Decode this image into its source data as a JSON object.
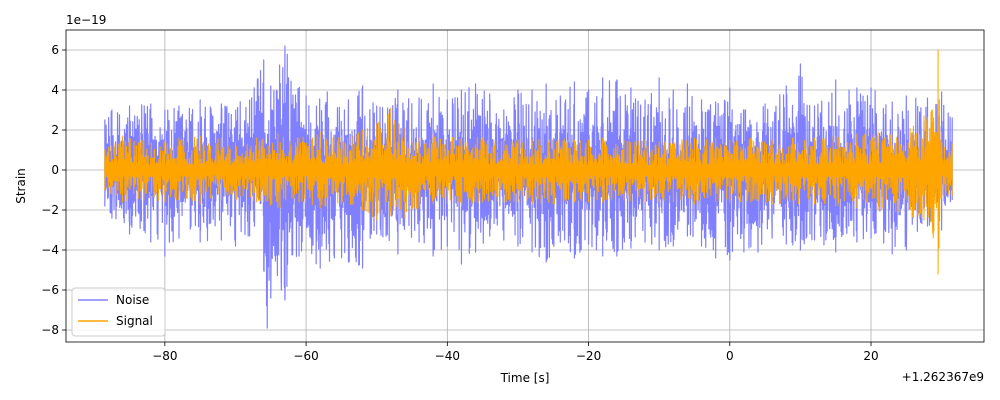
{
  "chart_data": {
    "type": "line",
    "title": "",
    "xlabel": "Time [s]",
    "ylabel": "Strain",
    "x_offset_label": "+1.262367e9",
    "y_scale_label": "1e−19",
    "xlim": [
      -94,
      36
    ],
    "ylim": [
      -8.6,
      7
    ],
    "x_ticks": [
      -80,
      -60,
      -40,
      -20,
      0,
      20
    ],
    "x_tick_labels": [
      "−80",
      "−60",
      "−40",
      "−20",
      "0",
      "20"
    ],
    "y_ticks": [
      -8,
      -6,
      -4,
      -2,
      0,
      2,
      4,
      6
    ],
    "y_tick_labels": [
      "−8",
      "−6",
      "−4",
      "−2",
      "0",
      "2",
      "4",
      "6"
    ],
    "grid": true,
    "legend_position": "lower-left",
    "series": [
      {
        "name": "Noise",
        "color": "#8080ff",
        "x_range": [
          -88.5,
          31.5
        ],
        "envelope_upper": [
          [
            -88.5,
            2.5
          ],
          [
            -87.5,
            3.0
          ],
          [
            -85,
            3.2
          ],
          [
            -82,
            3.3
          ],
          [
            -80,
            3.0
          ],
          [
            -78,
            3.2
          ],
          [
            -75,
            3.5
          ],
          [
            -72,
            3.3
          ],
          [
            -68,
            3.5
          ],
          [
            -66,
            5.5
          ],
          [
            -65,
            4.2
          ],
          [
            -63,
            6.2
          ],
          [
            -60,
            3.7
          ],
          [
            -57,
            3.9
          ],
          [
            -54,
            3.5
          ],
          [
            -52,
            4.2
          ],
          [
            -50,
            3.2
          ],
          [
            -47,
            4.0
          ],
          [
            -44,
            3.6
          ],
          [
            -42,
            4.3
          ],
          [
            -40,
            3.5
          ],
          [
            -38,
            4.0
          ],
          [
            -36,
            4.3
          ],
          [
            -34,
            3.8
          ],
          [
            -32,
            3.0
          ],
          [
            -30,
            4.0
          ],
          [
            -28,
            4.0
          ],
          [
            -26,
            4.3
          ],
          [
            -24,
            3.7
          ],
          [
            -22,
            4.4
          ],
          [
            -20,
            4.0
          ],
          [
            -18,
            4.6
          ],
          [
            -16,
            4.5
          ],
          [
            -14,
            4.1
          ],
          [
            -12,
            3.5
          ],
          [
            -10,
            4.6
          ],
          [
            -8,
            4.0
          ],
          [
            -6,
            4.3
          ],
          [
            -4,
            3.5
          ],
          [
            -2,
            3.4
          ],
          [
            0,
            4.1
          ],
          [
            2,
            3.0
          ],
          [
            5,
            3.3
          ],
          [
            8,
            4.2
          ],
          [
            10,
            5.3
          ],
          [
            12,
            3.2
          ],
          [
            15,
            4.5
          ],
          [
            18,
            4.1
          ],
          [
            20,
            4.1
          ],
          [
            23,
            3.4
          ],
          [
            25,
            3.7
          ],
          [
            28,
            3.6
          ],
          [
            30,
            3.9
          ],
          [
            31.5,
            2.6
          ]
        ],
        "envelope_lower": [
          [
            -88.5,
            -1.8
          ],
          [
            -87.5,
            -2.4
          ],
          [
            -85,
            -3.2
          ],
          [
            -82,
            -3.6
          ],
          [
            -80,
            -4.3
          ],
          [
            -78,
            -3.4
          ],
          [
            -75,
            -3.6
          ],
          [
            -72,
            -3.5
          ],
          [
            -70,
            -3.8
          ],
          [
            -68,
            -3.3
          ],
          [
            -66,
            -5.0
          ],
          [
            -65.5,
            -7.9
          ],
          [
            -65,
            -6.4
          ],
          [
            -63.5,
            -6.0
          ],
          [
            -63,
            -6.5
          ],
          [
            -61,
            -4.3
          ],
          [
            -58,
            -4.9
          ],
          [
            -56,
            -4.4
          ],
          [
            -54,
            -4.6
          ],
          [
            -52,
            -4.9
          ],
          [
            -50,
            -3.2
          ],
          [
            -47,
            -4.2
          ],
          [
            -44,
            -3.6
          ],
          [
            -42,
            -4.3
          ],
          [
            -40,
            -3.8
          ],
          [
            -38,
            -4.7
          ],
          [
            -36,
            -4.1
          ],
          [
            -34,
            -3.3
          ],
          [
            -32,
            -3.5
          ],
          [
            -30,
            -3.8
          ],
          [
            -28,
            -4.1
          ],
          [
            -26,
            -4.6
          ],
          [
            -24,
            -3.6
          ],
          [
            -22,
            -4.4
          ],
          [
            -20,
            -3.7
          ],
          [
            -18,
            -4.3
          ],
          [
            -16,
            -4.3
          ],
          [
            -14,
            -3.9
          ],
          [
            -12,
            -3.6
          ],
          [
            -10,
            -4.0
          ],
          [
            -8,
            -3.8
          ],
          [
            -6,
            -3.3
          ],
          [
            -4,
            -3.8
          ],
          [
            -2,
            -4.4
          ],
          [
            0,
            -4.5
          ],
          [
            2,
            -4.1
          ],
          [
            4,
            -4.1
          ],
          [
            6,
            -3.4
          ],
          [
            8,
            -3.7
          ],
          [
            10,
            -4.0
          ],
          [
            12,
            -3.5
          ],
          [
            15,
            -4.1
          ],
          [
            18,
            -3.6
          ],
          [
            20,
            -3.4
          ],
          [
            23,
            -4.2
          ],
          [
            25,
            -4.0
          ],
          [
            28,
            -2.8
          ],
          [
            30,
            -3.0
          ],
          [
            31.5,
            -1.5
          ]
        ]
      },
      {
        "name": "Signal",
        "color": "#ffa500",
        "x_range": [
          -88.5,
          31.5
        ],
        "envelope_upper": [
          [
            -88.5,
            1.0
          ],
          [
            -86,
            1.7
          ],
          [
            -83,
            1.5
          ],
          [
            -80,
            1.4
          ],
          [
            -78,
            1.6
          ],
          [
            -75,
            1.7
          ],
          [
            -72,
            1.6
          ],
          [
            -70,
            1.4
          ],
          [
            -67,
            1.6
          ],
          [
            -64,
            1.8
          ],
          [
            -61,
            1.6
          ],
          [
            -58,
            1.9
          ],
          [
            -55,
            1.7
          ],
          [
            -52,
            2.0
          ],
          [
            -50,
            2.3
          ],
          [
            -48,
            3.1
          ],
          [
            -46,
            2.1
          ],
          [
            -44,
            1.6
          ],
          [
            -42,
            1.8
          ],
          [
            -40,
            1.6
          ],
          [
            -38,
            1.8
          ],
          [
            -35,
            1.6
          ],
          [
            -32,
            1.5
          ],
          [
            -30,
            1.5
          ],
          [
            -28,
            1.5
          ],
          [
            -25,
            1.6
          ],
          [
            -22,
            1.5
          ],
          [
            -20,
            1.5
          ],
          [
            -18,
            1.6
          ],
          [
            -15,
            1.5
          ],
          [
            -12,
            1.5
          ],
          [
            -10,
            1.4
          ],
          [
            -8,
            1.5
          ],
          [
            -5,
            1.6
          ],
          [
            -2,
            1.6
          ],
          [
            0,
            1.5
          ],
          [
            3,
            1.6
          ],
          [
            6,
            1.5
          ],
          [
            9,
            1.6
          ],
          [
            12,
            1.6
          ],
          [
            15,
            1.7
          ],
          [
            18,
            1.8
          ],
          [
            21,
            1.9
          ],
          [
            24,
            1.9
          ],
          [
            26,
            2.2
          ],
          [
            27.5,
            2.7
          ],
          [
            28.5,
            2.9
          ],
          [
            29.5,
            6.0
          ],
          [
            30,
            1.4
          ],
          [
            31.5,
            1.3
          ]
        ],
        "envelope_lower": [
          [
            -88.5,
            -1.0
          ],
          [
            -86,
            -1.6
          ],
          [
            -83,
            -1.5
          ],
          [
            -80,
            -1.6
          ],
          [
            -78,
            -1.5
          ],
          [
            -75,
            -1.7
          ],
          [
            -72,
            -1.5
          ],
          [
            -70,
            -1.5
          ],
          [
            -67,
            -1.6
          ],
          [
            -64,
            -1.9
          ],
          [
            -61,
            -1.6
          ],
          [
            -58,
            -1.9
          ],
          [
            -55,
            -1.7
          ],
          [
            -52,
            -2.0
          ],
          [
            -50,
            -2.5
          ],
          [
            -48,
            -2.3
          ],
          [
            -46,
            -2.4
          ],
          [
            -44,
            -1.9
          ],
          [
            -42,
            -1.7
          ],
          [
            -40,
            -1.7
          ],
          [
            -38,
            -1.8
          ],
          [
            -35,
            -1.6
          ],
          [
            -32,
            -1.6
          ],
          [
            -30,
            -1.6
          ],
          [
            -28,
            -1.7
          ],
          [
            -25,
            -1.7
          ],
          [
            -22,
            -1.6
          ],
          [
            -20,
            -1.6
          ],
          [
            -18,
            -1.6
          ],
          [
            -15,
            -1.5
          ],
          [
            -12,
            -1.6
          ],
          [
            -10,
            -1.6
          ],
          [
            -8,
            -1.6
          ],
          [
            -5,
            -1.7
          ],
          [
            -2,
            -1.6
          ],
          [
            0,
            -1.6
          ],
          [
            3,
            -1.6
          ],
          [
            6,
            -1.7
          ],
          [
            9,
            -1.7
          ],
          [
            12,
            -1.7
          ],
          [
            15,
            -1.8
          ],
          [
            18,
            -1.9
          ],
          [
            21,
            -2.0
          ],
          [
            24,
            -2.1
          ],
          [
            26,
            -2.4
          ],
          [
            27.5,
            -2.5
          ],
          [
            28.5,
            -2.6
          ],
          [
            29.5,
            -5.2
          ],
          [
            30,
            -1.4
          ],
          [
            31.5,
            -1.3
          ]
        ]
      }
    ]
  }
}
